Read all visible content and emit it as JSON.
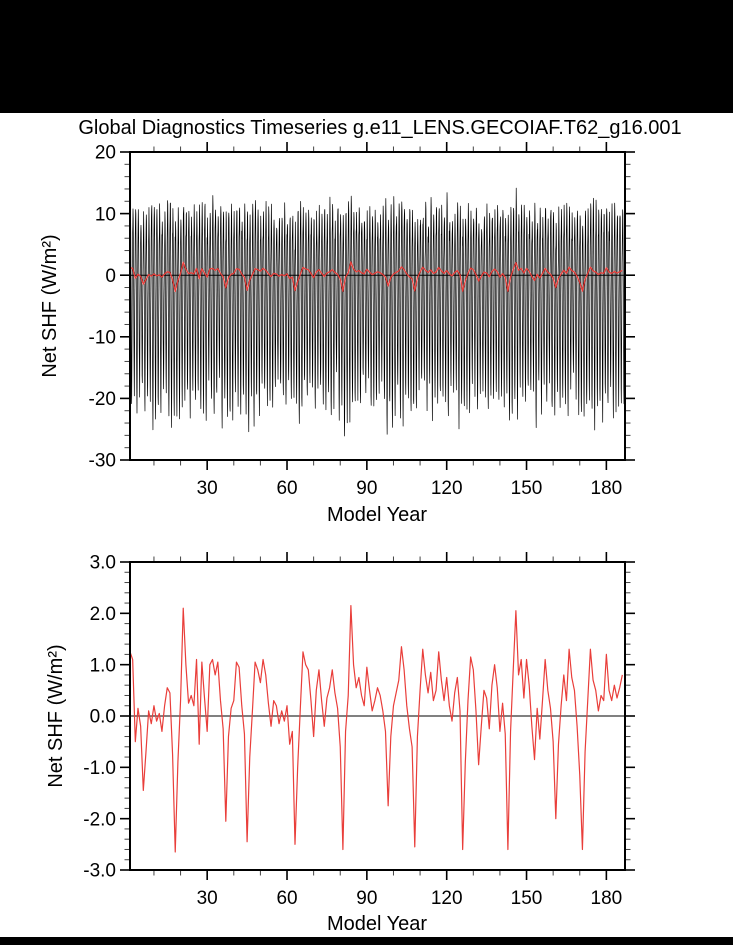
{
  "figure": {
    "title": "Global Diagnostics Timeseries g.e11_LENS.GECOIAF.T62_g16.001",
    "top_bar_color": "#000000",
    "bottom_bar_color": "#000000",
    "background_color": "#ffffff",
    "frame_color": "#000000",
    "red_series_color": "#e93e3a",
    "black_series_color": "#000000"
  },
  "annual_mean_net_shf": [
    1.25,
    1.1,
    -0.5,
    0.15,
    -0.2,
    -1.45,
    -0.7,
    0.1,
    -0.15,
    0.2,
    -0.1,
    0.05,
    -0.3,
    0.2,
    0.55,
    0.45,
    -0.75,
    -2.65,
    -0.9,
    0.3,
    2.1,
    1.0,
    0.25,
    0.4,
    0.2,
    1.1,
    -0.55,
    1.05,
    0.35,
    -0.3,
    1.0,
    1.1,
    0.8,
    1.05,
    0.3,
    -0.25,
    -2.05,
    -0.4,
    0.15,
    0.3,
    1.05,
    0.95,
    0.2,
    -0.35,
    -2.45,
    -0.8,
    0.1,
    1.05,
    0.9,
    0.65,
    1.1,
    0.8,
    0.25,
    -0.2,
    0.3,
    0.2,
    -0.15,
    0.1,
    -0.1,
    0.2,
    -0.55,
    -0.3,
    -2.5,
    -1.0,
    0.15,
    1.25,
    1.0,
    0.9,
    0.3,
    -0.4,
    0.5,
    0.9,
    0.3,
    -0.2,
    0.35,
    0.55,
    0.9,
    0.45,
    0.15,
    -0.6,
    -2.6,
    -0.3,
    0.4,
    2.15,
    1.0,
    0.55,
    0.75,
    0.4,
    0.2,
    0.95,
    0.5,
    0.1,
    0.3,
    0.55,
    0.4,
    0.1,
    -0.3,
    -1.75,
    -0.4,
    0.2,
    0.45,
    0.7,
    1.35,
    0.9,
    0.2,
    -0.25,
    -0.6,
    -2.55,
    -0.4,
    0.5,
    1.3,
    0.8,
    0.45,
    0.85,
    0.3,
    0.5,
    1.25,
    0.7,
    0.3,
    0.75,
    0.2,
    -0.1,
    0.45,
    0.75,
    0.1,
    -2.6,
    -0.9,
    0.3,
    1.15,
    0.9,
    0.1,
    -0.95,
    -0.2,
    0.5,
    0.35,
    -0.25,
    0.6,
    1.0,
    0.55,
    -0.3,
    0.25,
    -0.35,
    -2.6,
    -0.3,
    0.9,
    2.05,
    0.8,
    1.1,
    0.35,
    1.1,
    0.6,
    -0.2,
    -0.85,
    0.15,
    -0.45,
    0.3,
    1.1,
    0.5,
    0.15,
    -0.5,
    -2.0,
    -0.55,
    0.2,
    0.8,
    0.3,
    1.3,
    0.75,
    0.5,
    -0.2,
    -1.15,
    -2.6,
    -0.7,
    0.3,
    1.3,
    0.7,
    0.5,
    0.1,
    0.4,
    0.3,
    1.2,
    0.5,
    0.3,
    0.6,
    0.35,
    0.55,
    0.8
  ],
  "chart_data": [
    {
      "type": "line",
      "title": "Global Diagnostics Timeseries g.e11_LENS.GECOIAF.T62_g16.001",
      "xlabel": "Model Year",
      "ylabel": "Net SHF (W/m²)",
      "xlim": [
        1,
        187
      ],
      "ylim": [
        -30,
        20
      ],
      "grid": false,
      "zero_line": true,
      "legend": "none",
      "x_ticks": {
        "major_values": [
          30,
          60,
          90,
          120,
          150,
          180
        ],
        "major_labels": [
          "30",
          "60",
          "90",
          "120",
          "150",
          "180"
        ],
        "major_step": 30,
        "minor_step": 10
      },
      "y_ticks": {
        "major_values": [
          20,
          10,
          0,
          -10,
          -20,
          -30
        ],
        "major_labels": [
          "20",
          "10",
          "0",
          "-10",
          "-20",
          "-30"
        ],
        "major_step": 10,
        "minor_step": 2
      },
      "series": [
        {
          "name": "monthly-net-shf",
          "color": "#000000",
          "stroke_width": 0.7,
          "kind": "synthetic-monthly",
          "synthesis": {
            "seed": 20110811,
            "years": 186,
            "x_start": 1,
            "months_per_year": 12,
            "seasonal_pattern": [
              7.5,
              10.2,
              8.8,
              4.0,
              -3.0,
              -11.5,
              -18.0,
              -20.8,
              -14.5,
              -5.5,
              0.8,
              5.2
            ],
            "amplitude_jitter": 0.18,
            "monthly_noise": 1.3,
            "annual_coupling": 0.6,
            "annual_ref": "annual_mean_net_shf"
          }
        },
        {
          "name": "annual-mean-net-shf",
          "color": "#e93e3a",
          "stroke_width": 1.3,
          "kind": "annual",
          "x_start": 1,
          "x_step": 1,
          "values_ref": "annual_mean_net_shf"
        }
      ]
    },
    {
      "type": "line",
      "title": "",
      "xlabel": "Model Year",
      "ylabel": "Net SHF (W/m²)",
      "xlim": [
        1,
        187
      ],
      "ylim": [
        -3,
        3
      ],
      "grid": false,
      "zero_line": true,
      "legend": "none",
      "x_ticks": {
        "major_values": [
          30,
          60,
          90,
          120,
          150,
          180
        ],
        "major_labels": [
          "30",
          "60",
          "90",
          "120",
          "150",
          "180"
        ],
        "major_step": 30,
        "minor_step": 10
      },
      "y_ticks": {
        "major_values": [
          3.0,
          2.0,
          1.0,
          0.0,
          -1.0,
          -2.0,
          -3.0
        ],
        "major_labels": [
          "3.0",
          "2.0",
          "1.0",
          "0.0",
          "-1.0",
          "-2.0",
          "-3.0"
        ],
        "major_step": 1,
        "minor_step": 0.2
      },
      "series": [
        {
          "name": "annual-mean-net-shf",
          "color": "#e93e3a",
          "stroke_width": 1.2,
          "kind": "annual",
          "x_start": 1,
          "x_step": 1,
          "values_ref": "annual_mean_net_shf"
        }
      ]
    }
  ]
}
